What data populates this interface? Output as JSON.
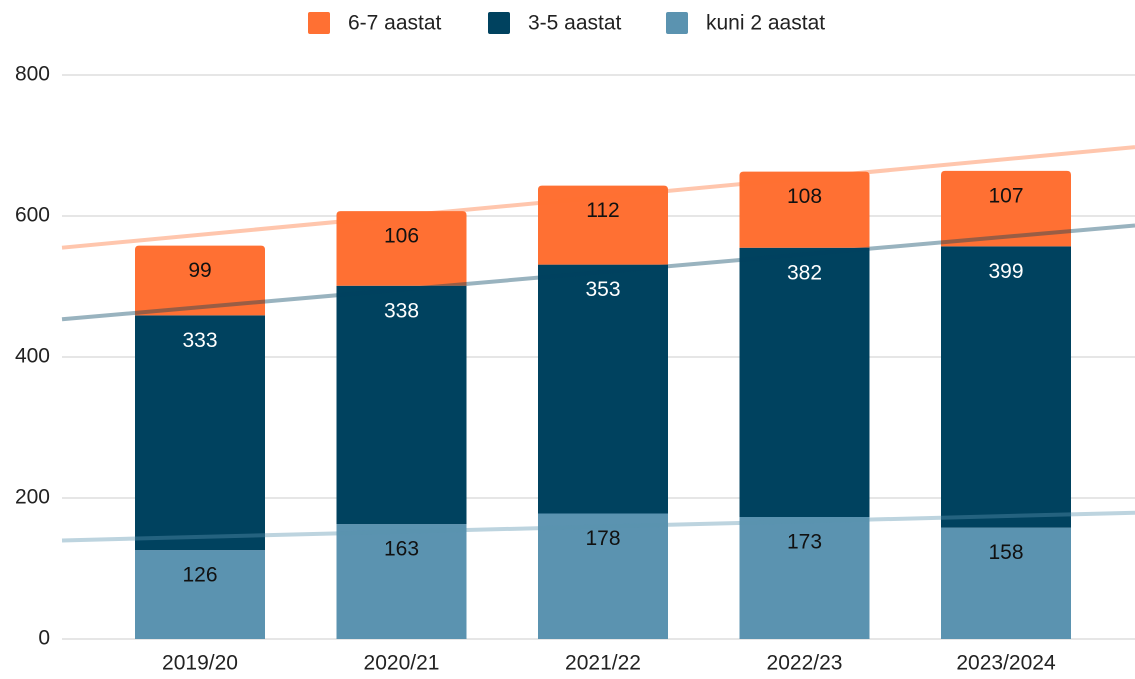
{
  "chart_data": {
    "type": "stacked_bar",
    "categories": [
      "2019/20",
      "2020/21",
      "2021/22",
      "2022/23",
      "2023/2024"
    ],
    "series": [
      {
        "name": "kuni 2 aastat",
        "color": "#5b93b0",
        "values": [
          126,
          163,
          178,
          173,
          158
        ]
      },
      {
        "name": "3-5 aastat",
        "color": "#00425f",
        "values": [
          333,
          338,
          353,
          382,
          399
        ]
      },
      {
        "name": "6-7 aastat",
        "color": "#ff7033",
        "values": [
          99,
          106,
          112,
          108,
          107
        ]
      }
    ],
    "ylim": [
      0,
      800
    ],
    "yticks": [
      0,
      200,
      400,
      600,
      800
    ],
    "grid": true,
    "trendlines": true,
    "legend": "top"
  }
}
